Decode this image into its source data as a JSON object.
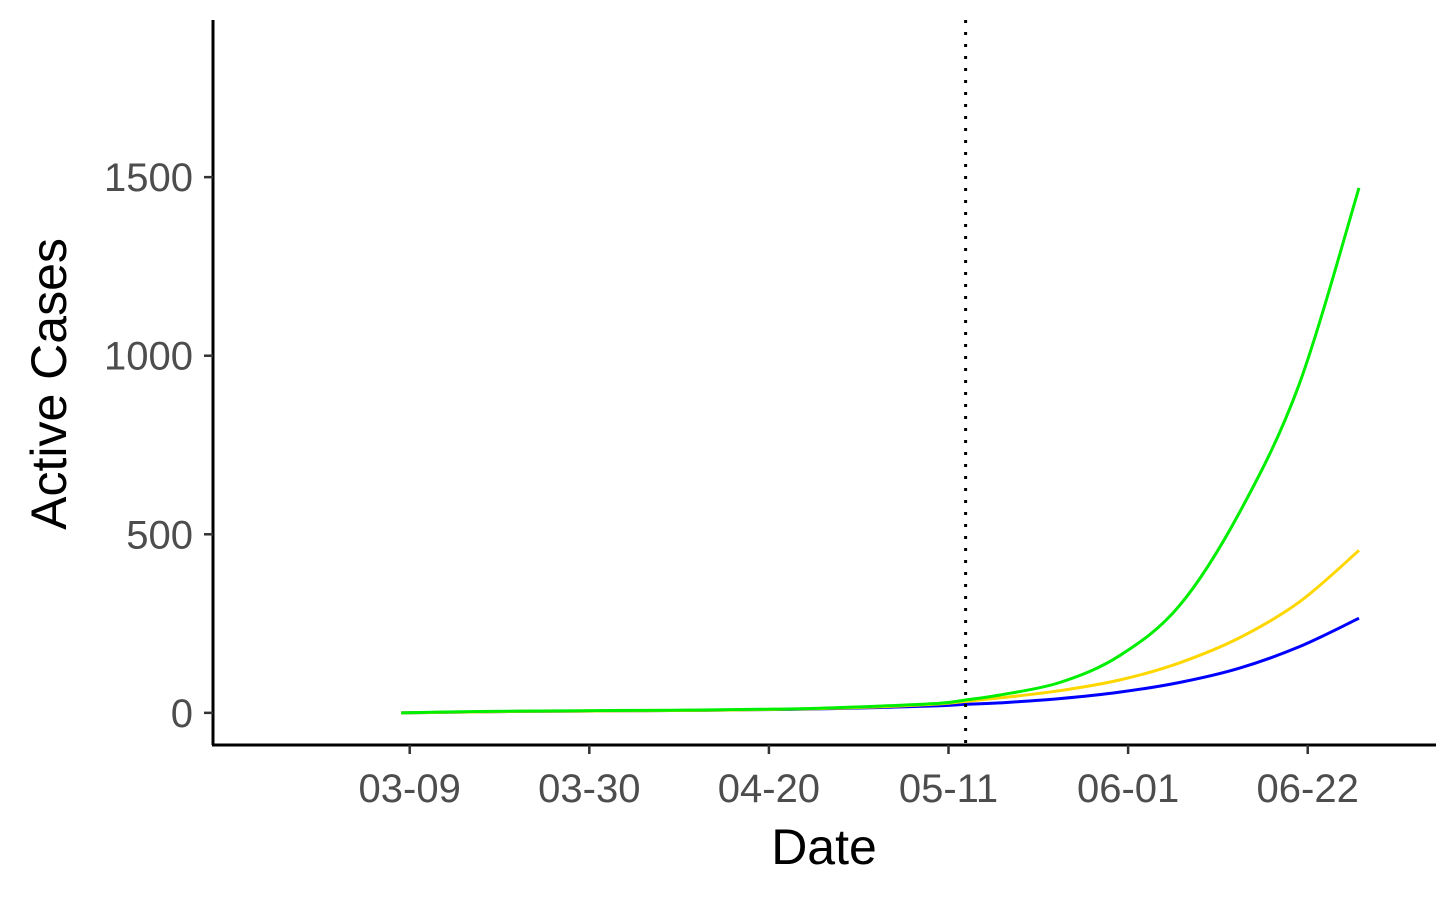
{
  "chart_data": {
    "type": "line",
    "xlabel": "Date",
    "ylabel": "Active Cases",
    "x_axis": {
      "type": "date",
      "ticks": [
        "2020-03-09",
        "2020-03-30",
        "2020-04-20",
        "2020-05-11",
        "2020-06-01",
        "2020-06-22"
      ],
      "tick_labels": [
        "03-09",
        "03-30",
        "04-20",
        "05-11",
        "06-01",
        "06-22"
      ],
      "range": [
        "2020-02-15",
        "2020-07-07"
      ]
    },
    "y_axis": {
      "ticks": [
        0,
        500,
        1000,
        1500
      ],
      "tick_labels": [
        "0",
        "500",
        "1000",
        "1500"
      ],
      "range": [
        -90,
        1940
      ]
    },
    "grid": false,
    "legend": "none",
    "vline": {
      "x": "2020-05-13",
      "style": "dotted",
      "color": "#000000"
    },
    "x": [
      "2020-03-08",
      "2020-03-15",
      "2020-03-22",
      "2020-03-29",
      "2020-04-05",
      "2020-04-12",
      "2020-04-19",
      "2020-04-26",
      "2020-05-03",
      "2020-05-10",
      "2020-05-13",
      "2020-05-17",
      "2020-05-24",
      "2020-05-31",
      "2020-06-07",
      "2020-06-14",
      "2020-06-21",
      "2020-06-28"
    ],
    "series": [
      {
        "color": "#0000ff",
        "values": [
          0,
          2,
          4,
          5,
          6,
          7,
          9,
          11,
          15,
          20,
          24,
          28,
          40,
          58,
          85,
          125,
          185,
          265
        ]
      },
      {
        "color": "#ffd700",
        "values": [
          0,
          2,
          4,
          5,
          6,
          7,
          9,
          12,
          17,
          25,
          32,
          42,
          62,
          92,
          140,
          210,
          310,
          455
        ]
      },
      {
        "color": "#00ee00",
        "values": [
          0,
          3,
          5,
          6,
          7,
          8,
          10,
          13,
          19,
          27,
          36,
          50,
          85,
          160,
          300,
          560,
          920,
          1470
        ]
      }
    ]
  }
}
